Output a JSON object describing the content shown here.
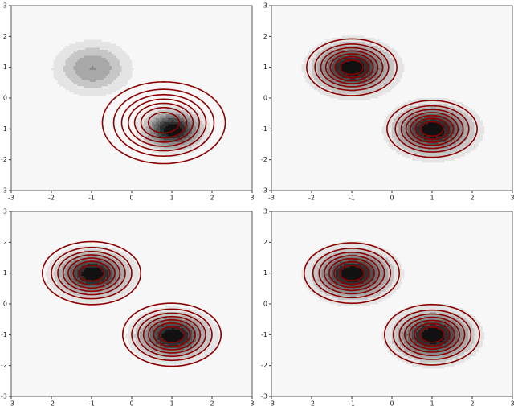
{
  "chart_data": [
    {
      "type": "contour",
      "xlim": [
        -3,
        3
      ],
      "ylim": [
        -3,
        3
      ],
      "xticks": [
        -3,
        -2,
        -1,
        0,
        1,
        2,
        3
      ],
      "yticks": [
        -3,
        -2,
        -1,
        0,
        1,
        2,
        3
      ],
      "fill_levels": 8,
      "line_levels": 7,
      "fill_color_low": "#e4e4e4",
      "fill_color_high": "#111111",
      "line_color": "#8b0000",
      "filled": [
        {
          "mean": [
            -1,
            1
          ],
          "sd": [
            0.6,
            0.55
          ],
          "weight": 0.45
        },
        {
          "mean": [
            1,
            -1
          ],
          "sd": [
            0.45,
            0.4
          ],
          "weight": 0.55
        }
      ],
      "lines": [
        {
          "mean": [
            0.8,
            -0.8
          ],
          "sd": [
            0.75,
            0.65
          ],
          "weight": 1
        }
      ]
    },
    {
      "type": "contour",
      "xlim": [
        -3,
        3
      ],
      "ylim": [
        -3,
        3
      ],
      "xticks": [
        -3,
        -2,
        -1,
        0,
        1,
        2,
        3
      ],
      "yticks": [
        -3,
        -2,
        -1,
        0,
        1,
        2,
        3
      ],
      "fill_levels": 8,
      "line_levels": 7,
      "fill_color_low": "#e4e4e4",
      "fill_color_high": "#111111",
      "line_color": "#8b0000",
      "filled": [
        {
          "mean": [
            -1,
            1
          ],
          "sd": [
            0.6,
            0.5
          ],
          "weight": 0.5
        },
        {
          "mean": [
            1,
            -1
          ],
          "sd": [
            0.6,
            0.5
          ],
          "weight": 0.5
        }
      ],
      "lines": [
        {
          "mean": [
            -1,
            1
          ],
          "sd": [
            0.55,
            0.45
          ],
          "weight": 0.5
        },
        {
          "mean": [
            1,
            -1
          ],
          "sd": [
            0.55,
            0.45
          ],
          "weight": 0.5
        }
      ]
    },
    {
      "type": "contour",
      "xlim": [
        -3,
        3
      ],
      "ylim": [
        -3,
        3
      ],
      "xticks": [
        -3,
        -2,
        -1,
        0,
        1,
        2,
        3
      ],
      "yticks": [
        -3,
        -2,
        -1,
        0,
        1,
        2,
        3
      ],
      "fill_levels": 8,
      "line_levels": 7,
      "fill_color_low": "#e4e4e4",
      "fill_color_high": "#111111",
      "line_color": "#8b0000",
      "filled": [
        {
          "mean": [
            -1,
            1
          ],
          "sd": [
            0.55,
            0.45
          ],
          "weight": 0.5
        },
        {
          "mean": [
            1,
            -1
          ],
          "sd": [
            0.55,
            0.45
          ],
          "weight": 0.5
        }
      ],
      "lines": [
        {
          "mean": [
            -1,
            1
          ],
          "sd": [
            0.6,
            0.5
          ],
          "weight": 0.5
        },
        {
          "mean": [
            1,
            -1
          ],
          "sd": [
            0.6,
            0.5
          ],
          "weight": 0.5
        }
      ]
    },
    {
      "type": "contour",
      "xlim": [
        -3,
        3
      ],
      "ylim": [
        -3,
        3
      ],
      "xticks": [
        -3,
        -2,
        -1,
        0,
        1,
        2,
        3
      ],
      "yticks": [
        -3,
        -2,
        -1,
        0,
        1,
        2,
        3
      ],
      "fill_levels": 8,
      "line_levels": 7,
      "fill_color_low": "#e4e4e4",
      "fill_color_high": "#111111",
      "line_color": "#8b0000",
      "filled": [
        {
          "mean": [
            -1,
            1
          ],
          "sd": [
            0.6,
            0.5
          ],
          "weight": 0.5
        },
        {
          "mean": [
            1,
            -1
          ],
          "sd": [
            0.6,
            0.5
          ],
          "weight": 0.5
        }
      ],
      "lines": [
        {
          "mean": [
            -1,
            1
          ],
          "sd": [
            0.58,
            0.48
          ],
          "weight": 0.5
        },
        {
          "mean": [
            1,
            -1
          ],
          "sd": [
            0.58,
            0.48
          ],
          "weight": 0.5
        }
      ]
    }
  ]
}
